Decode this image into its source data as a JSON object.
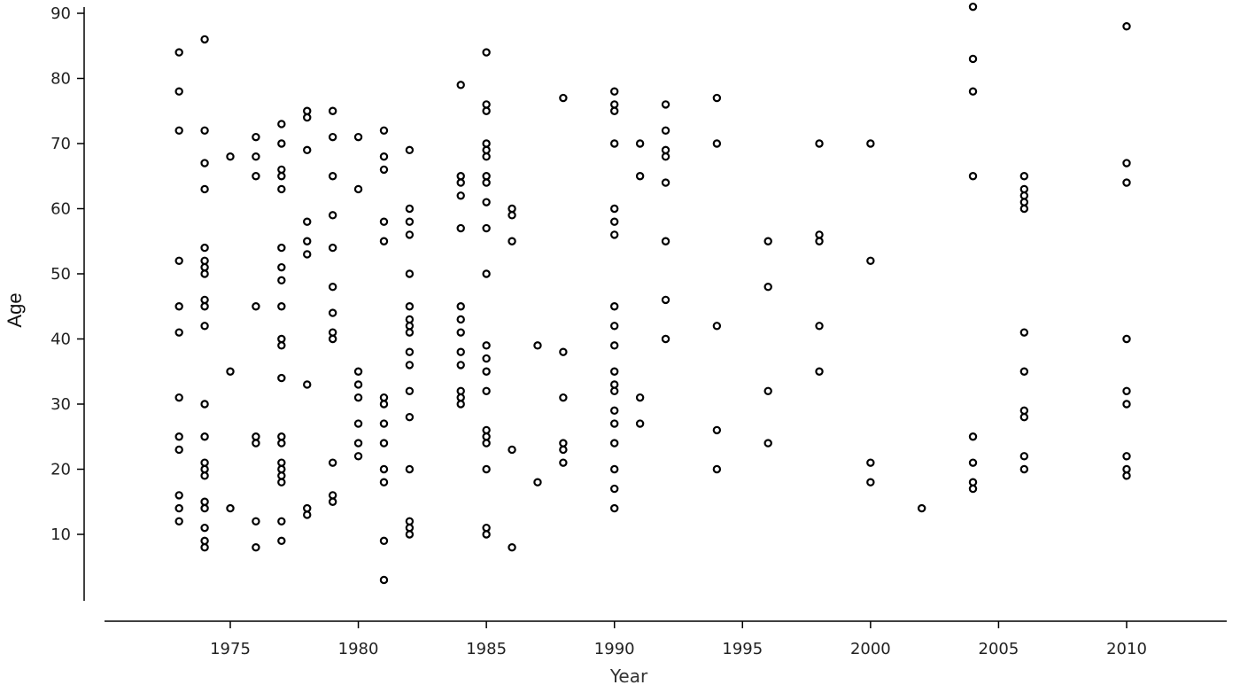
{
  "chart_data": {
    "type": "scatter",
    "title": "",
    "xlabel": "Year",
    "ylabel": "Age",
    "xlim": [
      1970,
      2014
    ],
    "ylim": [
      0,
      91
    ],
    "xticks": [
      1975,
      1980,
      1985,
      1990,
      1995,
      2000,
      2005,
      2010
    ],
    "yticks": [
      10,
      20,
      30,
      40,
      50,
      60,
      70,
      80,
      90
    ],
    "grid": false,
    "marker": "open-circle",
    "color": "#000000",
    "points_by_year": [
      {
        "x": 1973,
        "y": [
          84,
          78,
          72,
          52,
          45,
          41,
          31,
          25,
          23,
          16,
          14,
          12
        ]
      },
      {
        "x": 1974,
        "y": [
          86,
          72,
          67,
          63,
          54,
          52,
          51,
          50,
          46,
          45,
          42,
          30,
          25,
          21,
          20,
          19,
          15,
          14,
          11,
          9,
          8
        ]
      },
      {
        "x": 1975,
        "y": [
          68,
          35,
          14
        ]
      },
      {
        "x": 1976,
        "y": [
          71,
          68,
          65,
          45,
          25,
          24,
          12,
          8
        ]
      },
      {
        "x": 1977,
        "y": [
          73,
          70,
          66,
          65,
          63,
          54,
          51,
          49,
          45,
          40,
          39,
          34,
          25,
          24,
          21,
          20,
          19,
          18,
          12,
          9
        ]
      },
      {
        "x": 1978,
        "y": [
          75,
          74,
          69,
          58,
          55,
          53,
          33,
          14,
          13
        ]
      },
      {
        "x": 1979,
        "y": [
          75,
          71,
          65,
          59,
          54,
          48,
          44,
          41,
          40,
          21,
          16,
          15
        ]
      },
      {
        "x": 1980,
        "y": [
          71,
          63,
          35,
          33,
          31,
          27,
          24,
          22
        ]
      },
      {
        "x": 1981,
        "y": [
          72,
          68,
          66,
          58,
          55,
          31,
          30,
          27,
          24,
          20,
          18,
          9,
          3
        ]
      },
      {
        "x": 1982,
        "y": [
          69,
          60,
          58,
          56,
          50,
          45,
          43,
          42,
          41,
          38,
          36,
          32,
          28,
          20,
          12,
          11,
          10
        ]
      },
      {
        "x": 1984,
        "y": [
          79,
          65,
          64,
          62,
          57,
          45,
          43,
          41,
          38,
          36,
          32,
          31,
          30
        ]
      },
      {
        "x": 1985,
        "y": [
          84,
          76,
          75,
          70,
          69,
          68,
          65,
          64,
          61,
          57,
          50,
          39,
          37,
          35,
          32,
          26,
          25,
          24,
          20,
          11,
          10
        ]
      },
      {
        "x": 1986,
        "y": [
          60,
          59,
          55,
          23,
          8
        ]
      },
      {
        "x": 1987,
        "y": [
          39,
          18
        ]
      },
      {
        "x": 1988,
        "y": [
          77,
          38,
          31,
          24,
          23,
          21
        ]
      },
      {
        "x": 1990,
        "y": [
          78,
          76,
          75,
          70,
          60,
          58,
          56,
          45,
          42,
          39,
          35,
          33,
          32,
          29,
          27,
          24,
          20,
          17,
          14
        ]
      },
      {
        "x": 1991,
        "y": [
          70,
          65,
          31,
          27
        ]
      },
      {
        "x": 1992,
        "y": [
          76,
          72,
          69,
          68,
          64,
          55,
          46,
          40
        ]
      },
      {
        "x": 1994,
        "y": [
          77,
          70,
          42,
          26,
          20
        ]
      },
      {
        "x": 1996,
        "y": [
          55,
          48,
          32,
          24
        ]
      },
      {
        "x": 1998,
        "y": [
          70,
          56,
          55,
          42,
          35
        ]
      },
      {
        "x": 2000,
        "y": [
          70,
          52,
          21,
          18
        ]
      },
      {
        "x": 2002,
        "y": [
          14
        ]
      },
      {
        "x": 2004,
        "y": [
          91,
          83,
          78,
          65,
          25,
          21,
          18,
          17
        ]
      },
      {
        "x": 2006,
        "y": [
          65,
          63,
          62,
          61,
          60,
          41,
          35,
          29,
          28,
          22,
          20
        ]
      },
      {
        "x": 2010,
        "y": [
          88,
          67,
          64,
          40,
          32,
          30,
          22,
          20,
          19
        ]
      }
    ]
  }
}
